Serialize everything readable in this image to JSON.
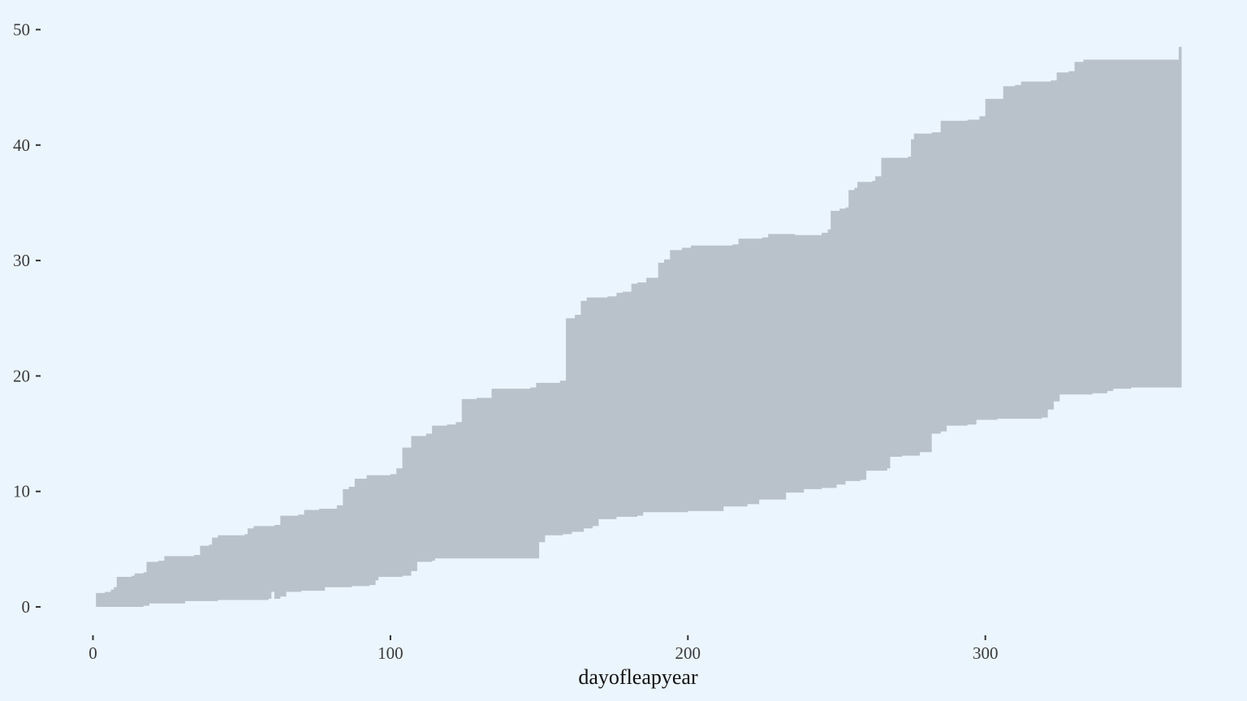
{
  "chart_data": {
    "type": "area",
    "title": "",
    "xlabel": "dayofleapyear",
    "ylabel": "",
    "xlim": [
      0,
      366
    ],
    "ylim": [
      0,
      50
    ],
    "x_ticks": [
      0,
      100,
      200,
      300
    ],
    "y_ticks": [
      0,
      10,
      20,
      30,
      40,
      50
    ],
    "grid": false,
    "background": "#ebf5fe",
    "fill_color": "#b9c2ca",
    "series": [
      {
        "type": "ribbon",
        "upper": [
          [
            1,
            1.2
          ],
          [
            4,
            1.3
          ],
          [
            6,
            1.5
          ],
          [
            7,
            1.7
          ],
          [
            8,
            2.6
          ],
          [
            13,
            2.7
          ],
          [
            14,
            2.9
          ],
          [
            17,
            3.0
          ],
          [
            18,
            3.9
          ],
          [
            22,
            4.0
          ],
          [
            24,
            4.4
          ],
          [
            34,
            4.5
          ],
          [
            36,
            5.3
          ],
          [
            39,
            5.4
          ],
          [
            40,
            6.0
          ],
          [
            42,
            6.2
          ],
          [
            51,
            6.3
          ],
          [
            52,
            6.8
          ],
          [
            54,
            7.0
          ],
          [
            61,
            7.1
          ],
          [
            63,
            7.9
          ],
          [
            69,
            8.0
          ],
          [
            71,
            8.4
          ],
          [
            76,
            8.5
          ],
          [
            82,
            8.8
          ],
          [
            84,
            10.2
          ],
          [
            86,
            10.4
          ],
          [
            88,
            11.1
          ],
          [
            92,
            11.4
          ],
          [
            100,
            11.5
          ],
          [
            102,
            12.0
          ],
          [
            104,
            13.8
          ],
          [
            107,
            14.8
          ],
          [
            112,
            15.0
          ],
          [
            114,
            15.7
          ],
          [
            119,
            15.8
          ],
          [
            122,
            16.0
          ],
          [
            124,
            18.0
          ],
          [
            129,
            18.1
          ],
          [
            134,
            18.9
          ],
          [
            147,
            19.0
          ],
          [
            149,
            19.4
          ],
          [
            157,
            19.6
          ],
          [
            159,
            25.0
          ],
          [
            162,
            25.3
          ],
          [
            164,
            26.5
          ],
          [
            166,
            26.8
          ],
          [
            173,
            26.9
          ],
          [
            176,
            27.2
          ],
          [
            178,
            27.3
          ],
          [
            181,
            28.0
          ],
          [
            183,
            28.1
          ],
          [
            186,
            28.5
          ],
          [
            190,
            29.8
          ],
          [
            192,
            30.1
          ],
          [
            194,
            30.9
          ],
          [
            198,
            31.1
          ],
          [
            201,
            31.3
          ],
          [
            215,
            31.4
          ],
          [
            217,
            31.9
          ],
          [
            225,
            32.0
          ],
          [
            227,
            32.3
          ],
          [
            236,
            32.2
          ],
          [
            245,
            32.4
          ],
          [
            247,
            32.7
          ],
          [
            248,
            34.3
          ],
          [
            251,
            34.5
          ],
          [
            253,
            34.6
          ],
          [
            254,
            36.1
          ],
          [
            256,
            36.3
          ],
          [
            257,
            36.8
          ],
          [
            262,
            36.9
          ],
          [
            263,
            37.3
          ],
          [
            265,
            38.9
          ],
          [
            274,
            39.0
          ],
          [
            275,
            40.5
          ],
          [
            276,
            41.0
          ],
          [
            282,
            41.1
          ],
          [
            285,
            42.1
          ],
          [
            294,
            42.2
          ],
          [
            298,
            42.5
          ],
          [
            300,
            44.0
          ],
          [
            306,
            45.1
          ],
          [
            310,
            45.2
          ],
          [
            312,
            45.5
          ],
          [
            322,
            45.6
          ],
          [
            324,
            46.3
          ],
          [
            328,
            46.4
          ],
          [
            330,
            47.2
          ],
          [
            333,
            47.4
          ],
          [
            364,
            47.4
          ],
          [
            365,
            48.5
          ],
          [
            366,
            49.0
          ]
        ],
        "lower": [
          [
            1,
            0.0
          ],
          [
            12,
            0.0
          ],
          [
            17,
            0.1
          ],
          [
            19,
            0.3
          ],
          [
            26,
            0.3
          ],
          [
            31,
            0.5
          ],
          [
            42,
            0.6
          ],
          [
            59,
            0.7
          ],
          [
            60,
            1.3
          ],
          [
            61,
            0.7
          ],
          [
            63,
            0.9
          ],
          [
            65,
            1.3
          ],
          [
            70,
            1.4
          ],
          [
            76,
            1.4
          ],
          [
            78,
            1.7
          ],
          [
            87,
            1.8
          ],
          [
            93,
            1.9
          ],
          [
            95,
            2.3
          ],
          [
            96,
            2.6
          ],
          [
            104,
            2.7
          ],
          [
            107,
            3.1
          ],
          [
            109,
            3.9
          ],
          [
            114,
            4.0
          ],
          [
            115,
            4.2
          ],
          [
            149,
            4.2
          ],
          [
            150,
            5.6
          ],
          [
            152,
            6.2
          ],
          [
            158,
            6.3
          ],
          [
            161,
            6.5
          ],
          [
            165,
            6.8
          ],
          [
            168,
            7.0
          ],
          [
            170,
            7.6
          ],
          [
            176,
            7.8
          ],
          [
            183,
            7.9
          ],
          [
            185,
            8.2
          ],
          [
            200,
            8.3
          ],
          [
            209,
            8.3
          ],
          [
            212,
            8.7
          ],
          [
            220,
            8.9
          ],
          [
            224,
            9.3
          ],
          [
            232,
            9.3
          ],
          [
            233,
            9.9
          ],
          [
            239,
            10.2
          ],
          [
            245,
            10.3
          ],
          [
            250,
            10.6
          ],
          [
            253,
            10.9
          ],
          [
            258,
            11.0
          ],
          [
            260,
            11.8
          ],
          [
            267,
            12.0
          ],
          [
            268,
            13.0
          ],
          [
            272,
            13.1
          ],
          [
            278,
            13.4
          ],
          [
            282,
            15.0
          ],
          [
            285,
            15.2
          ],
          [
            287,
            15.7
          ],
          [
            294,
            15.8
          ],
          [
            297,
            16.2
          ],
          [
            304,
            16.3
          ],
          [
            319,
            16.4
          ],
          [
            321,
            17.1
          ],
          [
            323,
            17.8
          ],
          [
            325,
            18.4
          ],
          [
            336,
            18.5
          ],
          [
            341,
            18.7
          ],
          [
            343,
            18.9
          ],
          [
            349,
            19.0
          ],
          [
            366,
            19.0
          ]
        ]
      }
    ]
  }
}
